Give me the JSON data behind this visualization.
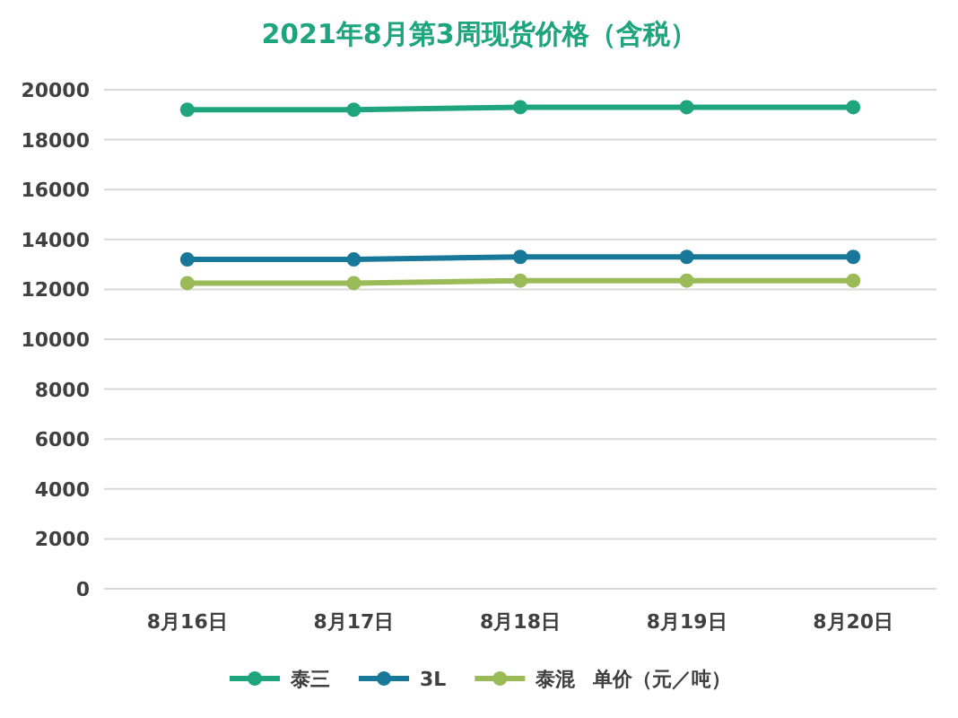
{
  "chart_data": {
    "type": "line",
    "title": "2021年8月第3周现货价格（含税）",
    "categories": [
      "8月16日",
      "8月17日",
      "8月18日",
      "8月19日",
      "8月20日"
    ],
    "series": [
      {
        "name": "泰三",
        "color": "#1ea57e",
        "values": [
          19200,
          19200,
          19300,
          19300,
          19300
        ]
      },
      {
        "name": "3L",
        "color": "#17789a",
        "values": [
          13200,
          13200,
          13300,
          13300,
          13300
        ]
      },
      {
        "name": "泰混",
        "color": "#9bbb59",
        "values": [
          12250,
          12250,
          12350,
          12350,
          12350
        ]
      }
    ],
    "annotations": [
      "单价（元／吨）"
    ],
    "ylim": [
      0,
      20000
    ],
    "yticks": [
      0,
      2000,
      4000,
      6000,
      8000,
      10000,
      12000,
      14000,
      16000,
      18000,
      20000
    ],
    "grid": "y",
    "legend": "bottom",
    "marker": "circle",
    "line_style": "solid"
  }
}
